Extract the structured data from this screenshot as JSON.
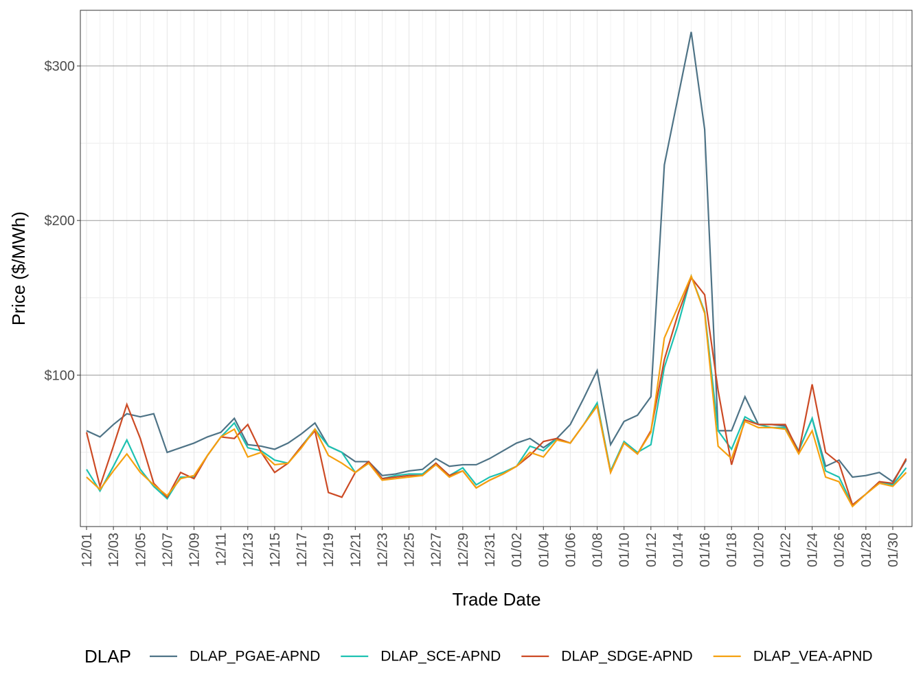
{
  "chart_data": {
    "type": "line",
    "x_label": "Trade Date",
    "y_label": "Price ($/MWh)",
    "legend_title": "DLAP",
    "legend": "bottom",
    "grid": true,
    "categories": [
      "12/01",
      null,
      "12/03",
      null,
      "12/05",
      null,
      "12/07",
      null,
      "12/09",
      null,
      "12/11",
      null,
      "12/13",
      null,
      "12/15",
      null,
      "12/17",
      null,
      "12/19",
      null,
      "12/21",
      null,
      "12/23",
      null,
      "12/25",
      null,
      "12/27",
      null,
      "12/29",
      null,
      "12/31",
      null,
      "01/02",
      null,
      "01/04",
      null,
      "01/06",
      null,
      "01/08",
      null,
      "01/10",
      null,
      "01/12",
      null,
      "01/14",
      null,
      "01/16",
      null,
      "01/18",
      null,
      "01/20",
      null,
      "01/22",
      null,
      "01/24",
      null,
      "01/26",
      null,
      "01/28",
      null,
      "01/30",
      null
    ],
    "ylim": [
      2,
      336
    ],
    "yticks": [
      {
        "value": 100,
        "label": "$100"
      },
      {
        "value": 200,
        "label": "$200"
      },
      {
        "value": 300,
        "label": "$300"
      }
    ],
    "series": [
      {
        "name": "DLAP_PGAE-APND",
        "color": "#4e7386",
        "values": [
          64,
          60,
          68,
          75,
          73,
          75,
          50,
          53,
          56,
          60,
          63,
          72,
          55,
          54,
          52,
          56,
          62,
          69,
          54,
          50,
          44,
          44,
          35,
          36,
          38,
          39,
          46,
          41,
          42,
          42,
          46,
          51,
          56,
          59,
          53,
          59,
          68,
          85,
          103,
          55,
          70,
          74,
          86,
          236,
          279,
          322,
          259,
          64,
          64,
          86,
          68,
          68,
          67,
          51,
          72,
          41,
          45,
          34,
          35,
          37,
          31,
          45
        ]
      },
      {
        "name": "DLAP_SCE-APND",
        "color": "#1dc1b1",
        "values": [
          39,
          25,
          41,
          58,
          39,
          28,
          20,
          34,
          34,
          48,
          60,
          69,
          53,
          51,
          45,
          43,
          54,
          65,
          54,
          50,
          37,
          43,
          33,
          35,
          36,
          36,
          43,
          35,
          40,
          29,
          34,
          37,
          41,
          54,
          51,
          59,
          56,
          68,
          82,
          38,
          57,
          50,
          55,
          105,
          132,
          164,
          141,
          64,
          52,
          73,
          68,
          66,
          66,
          51,
          72,
          38,
          34,
          16,
          23,
          31,
          29,
          40
        ]
      },
      {
        "name": "DLAP_SDGE-APND",
        "color": "#cc4a24",
        "values": [
          63,
          28,
          54,
          81,
          59,
          30,
          21,
          37,
          33,
          48,
          60,
          59,
          68,
          50,
          37,
          43,
          54,
          64,
          24,
          21,
          37,
          44,
          33,
          34,
          35,
          35,
          43,
          35,
          38,
          27,
          32,
          36,
          41,
          48,
          57,
          59,
          56,
          68,
          80,
          37,
          56,
          49,
          64,
          110,
          139,
          163,
          152,
          90,
          42,
          71,
          68,
          68,
          68,
          50,
          94,
          50,
          43,
          16,
          23,
          31,
          30,
          46
        ]
      },
      {
        "name": "DLAP_VEA-APND",
        "color": "#f5a00f",
        "values": [
          34,
          26,
          38,
          49,
          37,
          29,
          22,
          33,
          35,
          48,
          60,
          65,
          47,
          50,
          42,
          43,
          53,
          65,
          48,
          43,
          37,
          43,
          32,
          33,
          34,
          35,
          42,
          34,
          38,
          27,
          32,
          36,
          41,
          50,
          47,
          58,
          56,
          68,
          80,
          37,
          56,
          49,
          63,
          124,
          144,
          164,
          140,
          54,
          46,
          70,
          66,
          66,
          65,
          49,
          64,
          34,
          31,
          15,
          23,
          30,
          28,
          37
        ]
      }
    ]
  }
}
